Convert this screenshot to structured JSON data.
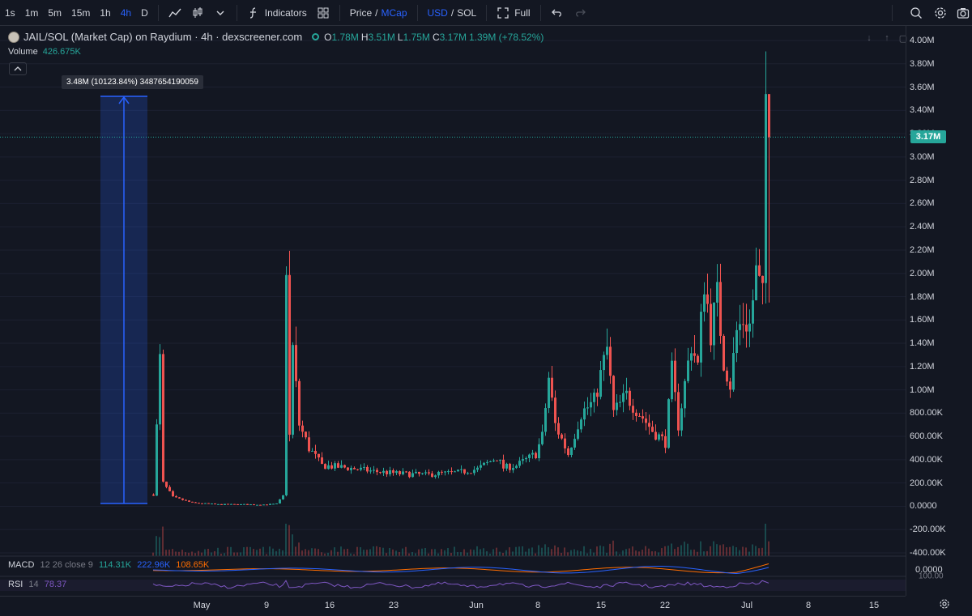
{
  "toolbar": {
    "intervals": [
      "1s",
      "1m",
      "5m",
      "15m",
      "1h",
      "4h",
      "D"
    ],
    "active_interval": "4h",
    "indicators_label": "Indicators",
    "price_label": "Price",
    "mcap_label": "MCap",
    "usd_label": "USD",
    "sol_label": "SOL",
    "slash": "/",
    "full_label": "Full"
  },
  "legend": {
    "title": "JAIL/SOL (Market Cap) on Raydium · 4h · dexscreener.com",
    "o_key": "O",
    "o_val": "1.78M",
    "h_key": "H",
    "h_val": "3.51M",
    "l_key": "L",
    "l_val": "1.75M",
    "c_key": "C",
    "c_val": "3.17M",
    "change": "1.39M (+78.52%)",
    "volume_label": "Volume",
    "volume_val": "426.675K"
  },
  "measure_tooltip": "3.48M (10123.84%) 3487654190059",
  "macd": {
    "label": "MACD",
    "params": "12 26 close 9",
    "v1": "114.31K",
    "v2": "222.96K",
    "v3": "108.65K",
    "axis_val": "0.0000"
  },
  "rsi": {
    "label": "RSI",
    "params": "14",
    "value": "78.37",
    "axis_val": "100.00"
  },
  "current_price_badge": "3.17M",
  "colors": {
    "up": "#26a69a",
    "down": "#ef5350",
    "bg": "#131722",
    "measure": "#2962ff",
    "rsi": "#7e57c2",
    "macd_line": "#2962ff",
    "signal_line": "#ff6d00"
  },
  "chart_data": {
    "type": "candlestick",
    "price_axis_ticks": [
      "4.00M",
      "3.80M",
      "3.60M",
      "3.40M",
      "3.20M",
      "3.00M",
      "2.80M",
      "2.60M",
      "2.40M",
      "2.20M",
      "2.00M",
      "1.80M",
      "1.60M",
      "1.40M",
      "1.20M",
      "1.00M",
      "800.00K",
      "600.00K",
      "400.00K",
      "200.00K",
      "0.0000",
      "-200.00K",
      "-400.00K"
    ],
    "price_axis_values": [
      4000000,
      3800000,
      3600000,
      3400000,
      3200000,
      3000000,
      2800000,
      2600000,
      2400000,
      2200000,
      2000000,
      1800000,
      1600000,
      1400000,
      1200000,
      1000000,
      800000,
      600000,
      400000,
      200000,
      0,
      -200000,
      -400000
    ],
    "ylim": [
      -400000,
      4000000
    ],
    "time_axis_ticks": [
      "May",
      "9",
      "16",
      "23",
      "Jun",
      "8",
      "15",
      "22",
      "Jul",
      "8",
      "15"
    ],
    "current_price": 3170000,
    "series": [
      {
        "name": "market-cap-path",
        "points": [
          [
            0,
            100000
          ],
          [
            2,
            1250000
          ],
          [
            3,
            200000
          ],
          [
            6,
            80000
          ],
          [
            12,
            30000
          ],
          [
            20,
            15000
          ],
          [
            35,
            15000
          ],
          [
            38,
            20000
          ],
          [
            40,
            90000
          ],
          [
            41,
            2100000
          ],
          [
            42,
            600000
          ],
          [
            43,
            1350000
          ],
          [
            45,
            700000
          ],
          [
            48,
            500000
          ],
          [
            52,
            350000
          ],
          [
            60,
            330000
          ],
          [
            68,
            300000
          ],
          [
            76,
            280000
          ],
          [
            84,
            270000
          ],
          [
            88,
            280000
          ],
          [
            94,
            290000
          ],
          [
            100,
            320000
          ],
          [
            106,
            420000
          ],
          [
            108,
            330000
          ],
          [
            112,
            350000
          ],
          [
            118,
            450000
          ],
          [
            120,
            600000
          ],
          [
            122,
            1100000
          ],
          [
            124,
            700000
          ],
          [
            128,
            450000
          ],
          [
            132,
            800000
          ],
          [
            136,
            900000
          ],
          [
            140,
            1350000
          ],
          [
            142,
            800000
          ],
          [
            146,
            950000
          ],
          [
            150,
            800000
          ],
          [
            154,
            650000
          ],
          [
            158,
            550000
          ],
          [
            160,
            1150000
          ],
          [
            162,
            700000
          ],
          [
            166,
            1400000
          ],
          [
            168,
            1200000
          ],
          [
            170,
            1950000
          ],
          [
            172,
            1500000
          ],
          [
            174,
            1800000
          ],
          [
            176,
            1250000
          ],
          [
            178,
            1050000
          ],
          [
            180,
            1500000
          ],
          [
            182,
            1600000
          ],
          [
            184,
            1550000
          ],
          [
            186,
            2000000
          ],
          [
            188,
            1780000
          ],
          [
            189,
            3510000
          ],
          [
            190,
            3170000
          ]
        ]
      }
    ]
  }
}
